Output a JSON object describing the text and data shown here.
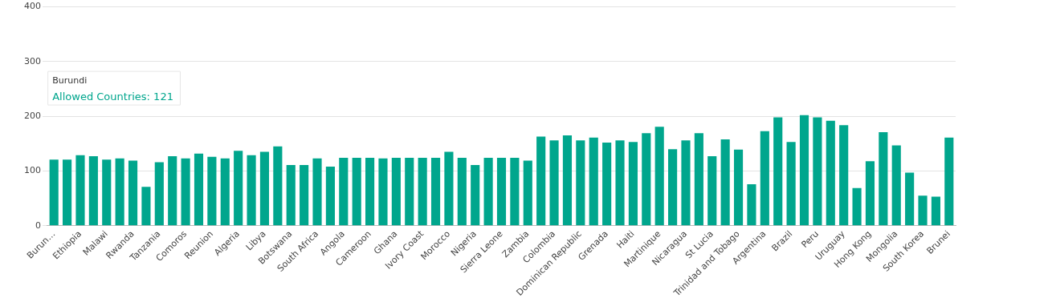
{
  "chart_data": {
    "type": "bar",
    "categories": [
      "Burun…",
      null,
      "Ethiopia",
      null,
      "Malawi",
      null,
      "Rwanda",
      null,
      "Tanzania",
      null,
      "Comoros",
      null,
      "Reunion",
      null,
      "Algeria",
      null,
      "Libya",
      null,
      "Botswana",
      null,
      "South Africa",
      null,
      "Angola",
      null,
      "Cameroon",
      null,
      "Ghana",
      null,
      "Ivory Coast",
      null,
      "Morocco",
      null,
      "Nigeria",
      null,
      "Sierra Leone",
      null,
      "Zambia",
      null,
      "Colombia",
      null,
      "Dominican Republic",
      null,
      "Grenada",
      null,
      "Haiti",
      null,
      "Martinique",
      null,
      "Nicaragua",
      null,
      "St Lucia",
      null,
      "Trinidad and Tobago",
      null,
      "Argentina",
      null,
      "Brazil",
      null,
      "Peru",
      null,
      "Uruguay",
      null,
      "Hong Kong",
      null,
      "Mongolia",
      null,
      "South Korea",
      null,
      "Brunei"
    ],
    "series": [
      {
        "color": "#00a68d",
        "values": [
          121,
          121,
          129,
          127,
          121,
          123,
          119,
          71,
          116,
          127,
          123,
          132,
          126,
          123,
          137,
          129,
          135,
          145,
          111,
          111,
          123,
          108,
          124,
          124,
          124,
          123,
          124,
          124,
          124,
          124,
          135,
          124,
          111,
          124,
          124,
          124,
          119,
          163,
          156,
          165,
          156,
          161,
          152,
          156,
          153,
          169,
          181,
          140,
          156,
          169,
          127,
          158,
          139,
          76,
          173,
          198,
          153,
          202,
          198,
          192,
          184,
          69,
          118,
          171,
          147,
          97,
          55,
          53,
          161
        ]
      }
    ],
    "ylim": [
      0,
      400
    ],
    "yticks": [
      0,
      100,
      200,
      300,
      400
    ],
    "grid": "y",
    "legend": false,
    "annotations": [
      "Burundi",
      "Allowed Countries: 121"
    ]
  }
}
